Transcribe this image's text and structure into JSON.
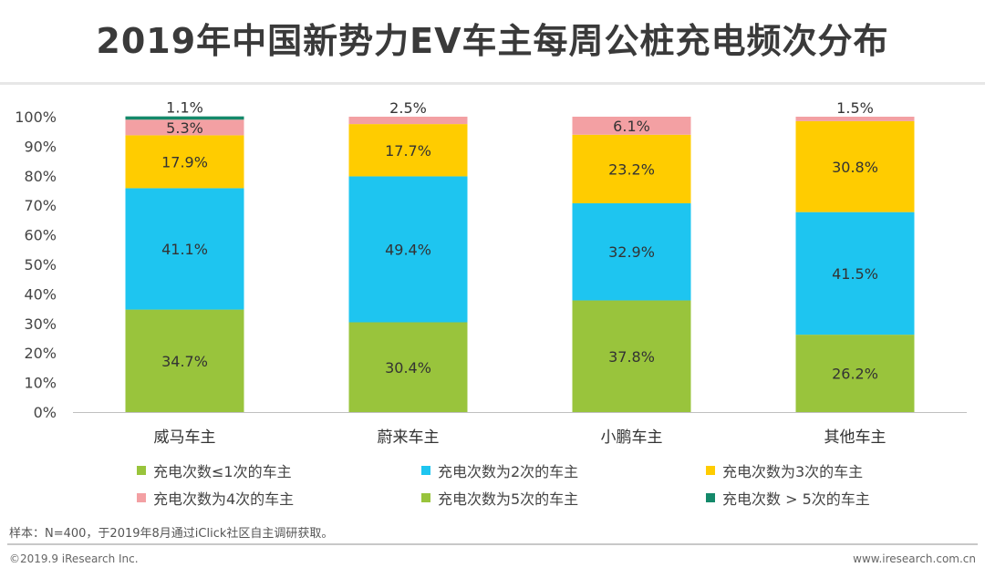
{
  "chart_data": {
    "type": "bar",
    "stacked": true,
    "title": "2019年中国新势力EV车主每周公桩充电频次分布",
    "categories": [
      "威马车主",
      "蔚来车主",
      "小鹏车主",
      "其他车主"
    ],
    "ylim": [
      0,
      100
    ],
    "yticks": [
      "0%",
      "10%",
      "20%",
      "30%",
      "40%",
      "50%",
      "60%",
      "70%",
      "80%",
      "90%",
      "100%"
    ],
    "series": [
      {
        "name": "充电次数≤1次的车主",
        "color": "#99c43c",
        "values": [
          34.7,
          30.4,
          37.8,
          26.2
        ],
        "labels": [
          "34.7%",
          "30.4%",
          "37.8%",
          "26.2%"
        ]
      },
      {
        "name": "充电次数为2次的车主",
        "color": "#1ec5f0",
        "values": [
          41.1,
          49.4,
          32.9,
          41.5
        ],
        "labels": [
          "41.1%",
          "49.4%",
          "32.9%",
          "41.5%"
        ]
      },
      {
        "name": "充电次数为3次的车主",
        "color": "#ffcc00",
        "values": [
          17.9,
          17.7,
          23.2,
          30.8
        ],
        "labels": [
          "17.9%",
          "17.7%",
          "23.2%",
          "30.8%"
        ]
      },
      {
        "name": "充电次数为4次的车主",
        "color": "#f3a0a3",
        "values": [
          5.3,
          2.5,
          6.1,
          1.5
        ],
        "labels": [
          "5.3%",
          "2.5%",
          "6.1%",
          "1.5%"
        ]
      },
      {
        "name": "充电次数为5次的车主",
        "color": "#99c43c",
        "values": [
          0,
          0,
          0,
          0
        ],
        "labels": [
          "",
          "",
          "",
          ""
        ]
      },
      {
        "name": "充电次数 > 5次的车主",
        "color": "#14896a",
        "values": [
          1.1,
          0,
          0,
          0
        ],
        "labels": [
          "1.1%",
          "",
          "",
          ""
        ]
      }
    ]
  },
  "footnote": "样本：N=400，于2019年8月通过iClick社区自主调研获取。",
  "copyright": "©2019.9  iResearch Inc.",
  "website": "www.iresearch.com.cn"
}
